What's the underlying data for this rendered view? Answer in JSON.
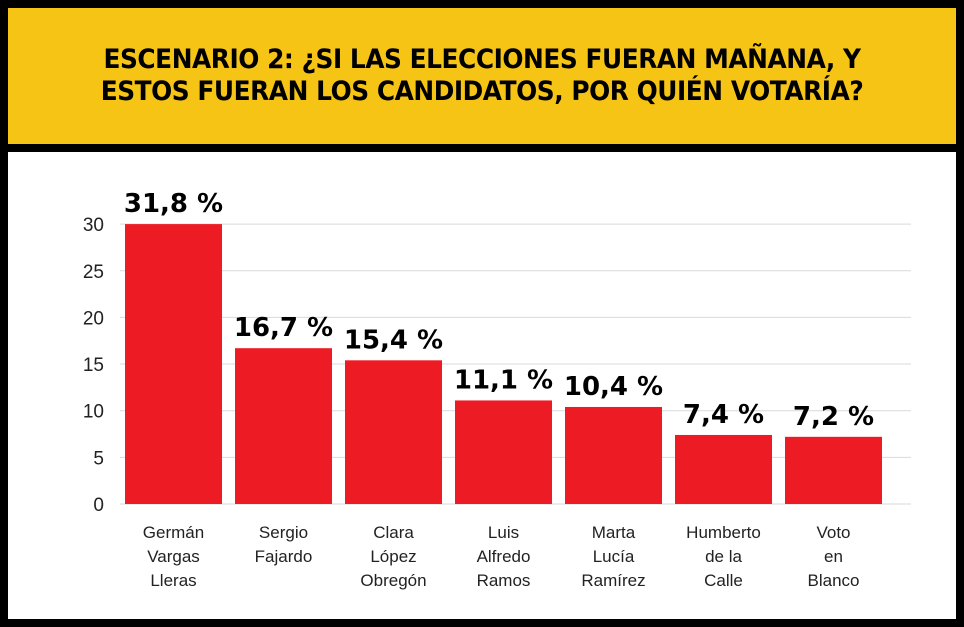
{
  "header": {
    "title": "ESCENARIO 2: ¿SI LAS ELECCIONES FUERAN MAÑANA, Y ESTOS FUERAN LOS CANDIDATOS, POR QUIÉN VOTARÍA?"
  },
  "colors": {
    "bar": "#ed1c24",
    "header_bg": "#f6c415",
    "grid": "#d9d9d9"
  },
  "chart_data": {
    "type": "bar",
    "title": "ESCENARIO 2: ¿SI LAS ELECCIONES FUERAN MAÑANA, Y ESTOS FUERAN LOS CANDIDATOS, POR QUIÉN VOTARÍA?",
    "categories": [
      [
        "Germán",
        "Vargas",
        "Lleras"
      ],
      [
        "Sergio",
        "Fajardo"
      ],
      [
        "Clara",
        "López",
        "Obregón"
      ],
      [
        "Luis",
        "Alfredo",
        "Ramos"
      ],
      [
        "Marta",
        "Lucía",
        "Ramírez"
      ],
      [
        "Humberto",
        "de la",
        "Calle"
      ],
      [
        "Voto",
        "en",
        "Blanco"
      ]
    ],
    "values": [
      31.8,
      16.7,
      15.4,
      11.1,
      10.4,
      7.4,
      7.2
    ],
    "labels": [
      "31,8 %",
      "16,7 %",
      "15,4 %",
      "11,1 %",
      "10,4 %",
      "7,4 %",
      "7,2 %"
    ],
    "yticks": [
      "0",
      "5",
      "10",
      "15",
      "20",
      "25",
      "30"
    ],
    "ylim": [
      0,
      30
    ],
    "xlabel": "",
    "ylabel": "",
    "grid": true,
    "legend": "none"
  }
}
